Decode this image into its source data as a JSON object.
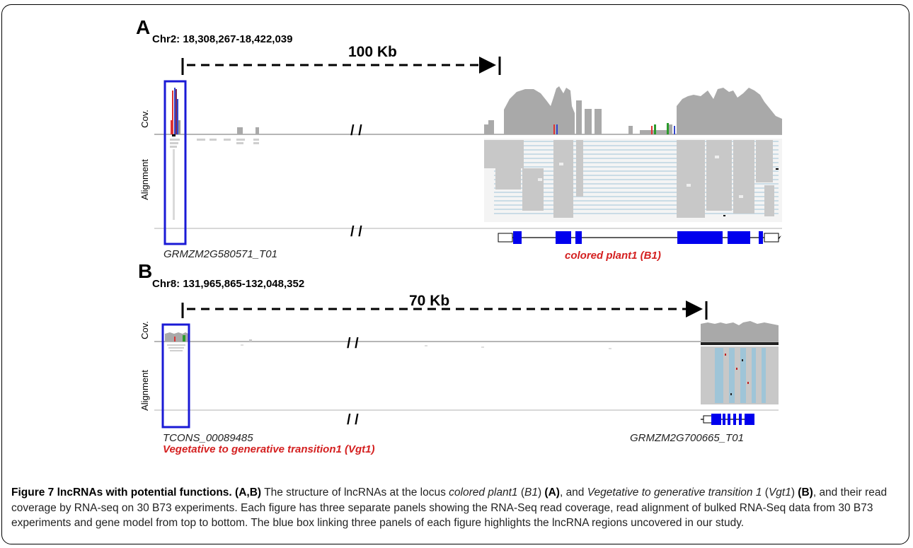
{
  "figure": {
    "panel_a": {
      "letter": "A",
      "coords": "Chr2: 18,308,267-18,422,039",
      "scale": "100 Kb",
      "cov_label": "Cov.",
      "align_label": "Alignment",
      "left_gene": "GRMZM2G580571_T01",
      "right_gene": "colored plant1  (B1)"
    },
    "panel_b": {
      "letter": "B",
      "coords": "Chr8: 131,965,865-132,048,352",
      "scale": "70 Kb",
      "cov_label": "Cov.",
      "align_label": "Alignment",
      "left_gene": "TCONS_00089485",
      "left_gene_name": "Vegetative to generative transition1 (Vgt1)",
      "right_gene": "GRMZM2G700665_T01"
    },
    "break_mark": "/ /",
    "colors": {
      "highlight_box": "#1a1ad6",
      "gene_block": "#0000ee",
      "coverage": "#a9a9a9",
      "reads": "#c8c8c8",
      "junction": "#9fc5d8",
      "gene_name_red": "#d42020"
    }
  },
  "caption": {
    "label": "Figure 7 lncRNAs with potential functions.",
    "t1": "(A,B)",
    "t2": " The structure of lncRNAs at the locus ",
    "t3": "colored plant1",
    "t4": " (",
    "t5": "B1",
    "t6": ") ",
    "t7": "(A)",
    "t8": ", and ",
    "t9": "Vegetative to generative transition 1",
    "t10": " (",
    "t11": "Vgt1",
    "t12": ") ",
    "t13": "(B)",
    "t14": ", and their read coverage by RNA-seq on 30 B73 experiments. Each figure has three separate panels showing the RNA-Seq read coverage, read alignment of bulked RNA-Seq data from 30 B73 experiments and gene model from top to bottom. The blue box linking three panels of each figure highlights the lncRNA regions uncovered in our study."
  }
}
